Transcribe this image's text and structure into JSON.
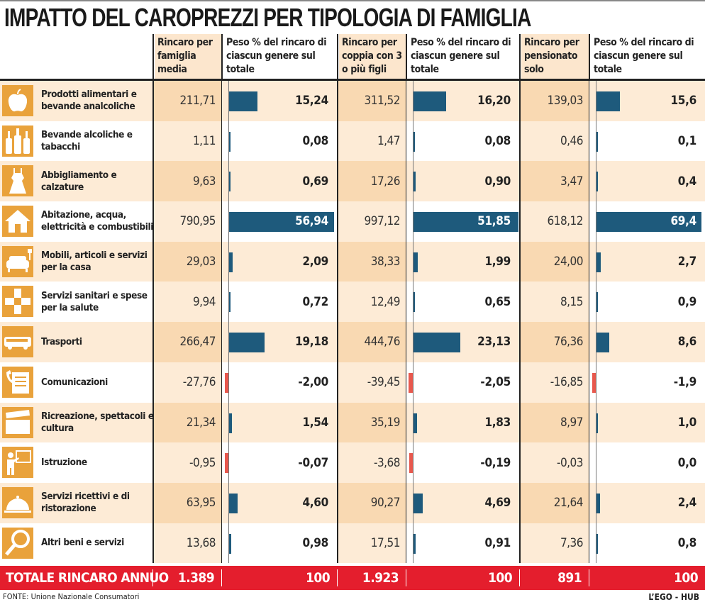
{
  "title": "IMPATTO DEL CAROPREZZI PER TIPOLOGIA DI FAMIGLIA",
  "colors": {
    "bar": "#1e5a7c",
    "negative_bar": "#e8584d",
    "icon_bg": "#e9a23b",
    "total_bg": "#e41e2d",
    "row_tint": "#fdebd6",
    "rincaro_tint": "#f9d9b2"
  },
  "headers": [
    "Rincaro per famiglia media",
    "Peso % del rincaro di ciascun genere sul totale",
    "Rincaro per coppia con 3 o più figli",
    "Peso % del rincaro di ciascun genere sul totale",
    "Rincaro per pensionato solo",
    "Peso % del rincaro di ciascun genere sul totale"
  ],
  "chart_data": {
    "type": "table",
    "title": "IMPATTO DEL CAROPREZZI PER TIPOLOGIA DI FAMIGLIA",
    "columns": [
      "Rincaro per famiglia media",
      "Peso % del rincaro di ciascun genere sul totale",
      "Rincaro per coppia con 3 o più figli",
      "Peso % del rincaro di ciascun genere sul totale",
      "Rincaro per pensionato solo",
      "Peso % del rincaro di ciascun genere sul totale"
    ],
    "rows": [
      {
        "label": "Prodotti alimentari e bevande analcoliche",
        "icon": "apple-icon",
        "values": [
          "211,71",
          "15,24",
          "311,52",
          "16,20",
          "139,03",
          "15,6"
        ],
        "peso": [
          15.24,
          16.2,
          15.6
        ]
      },
      {
        "label": "Bevande alcoliche e tabacchi",
        "icon": "bottles-icon",
        "values": [
          "1,11",
          "0,08",
          "1,47",
          "0,08",
          "0,46",
          "0,1"
        ],
        "peso": [
          0.08,
          0.08,
          0.1
        ]
      },
      {
        "label": "Abbigliamento e calzature",
        "icon": "dress-icon",
        "values": [
          "9,63",
          "0,69",
          "17,26",
          "0,90",
          "3,47",
          "0,4"
        ],
        "peso": [
          0.69,
          0.9,
          0.4
        ]
      },
      {
        "label": "Abitazione, acqua, elettricità e combustibili",
        "icon": "house-icon",
        "values": [
          "790,95",
          "56,94",
          "997,12",
          "51,85",
          "618,12",
          "69,4"
        ],
        "peso": [
          56.94,
          51.85,
          69.4
        ]
      },
      {
        "label": "Mobili, articoli e servizi per la casa",
        "icon": "sofa-icon",
        "values": [
          "29,03",
          "2,09",
          "38,33",
          "1,99",
          "24,00",
          "2,7"
        ],
        "peso": [
          2.09,
          1.99,
          2.7
        ]
      },
      {
        "label": "Servizi sanitari e spese per la salute",
        "icon": "cross-icon",
        "values": [
          "9,94",
          "0,72",
          "12,49",
          "0,65",
          "8,15",
          "0,9"
        ],
        "peso": [
          0.72,
          0.65,
          0.9
        ]
      },
      {
        "label": "Trasporti",
        "icon": "bus-icon",
        "values": [
          "266,47",
          "19,18",
          "444,76",
          "23,13",
          "76,36",
          "8,6"
        ],
        "peso": [
          19.18,
          23.13,
          8.6
        ]
      },
      {
        "label": "Comunicazioni",
        "icon": "document-icon",
        "values": [
          "-27,76",
          "-2,00",
          "-39,45",
          "-2,05",
          "-16,85",
          "-1,9"
        ],
        "peso": [
          -2.0,
          -2.05,
          -1.9
        ]
      },
      {
        "label": "Ricreazione, spettacoli e cultura",
        "icon": "clapperboard-icon",
        "values": [
          "21,34",
          "1,54",
          "35,19",
          "1,83",
          "8,97",
          "1,0"
        ],
        "peso": [
          1.54,
          1.83,
          1.0
        ]
      },
      {
        "label": "Istruzione",
        "icon": "teacher-icon",
        "values": [
          "-0,95",
          "-0,07",
          "-3,68",
          "-0,19",
          "-0,03",
          "0,0"
        ],
        "peso": [
          -0.07,
          -0.19,
          0.0
        ]
      },
      {
        "label": "Servizi ricettivi e di ristorazione",
        "icon": "cloche-icon",
        "values": [
          "63,95",
          "4,60",
          "90,27",
          "4,69",
          "21,64",
          "2,4"
        ],
        "peso": [
          4.6,
          4.69,
          2.4
        ]
      },
      {
        "label": "Altri beni e servizi",
        "icon": "magnifier-icon",
        "values": [
          "13,68",
          "0,98",
          "17,51",
          "0,91",
          "7,36",
          "0,8"
        ],
        "peso": [
          0.98,
          0.91,
          0.8
        ]
      }
    ],
    "total": {
      "label": "TOTALE RINCARO ANNUO",
      "values": [
        "1.389",
        "100",
        "1.923",
        "100",
        "891",
        "100"
      ]
    }
  },
  "footer": {
    "source": "FONTE: Unione Nazionale Consumatori",
    "credit": "L’EGO - HUB"
  }
}
